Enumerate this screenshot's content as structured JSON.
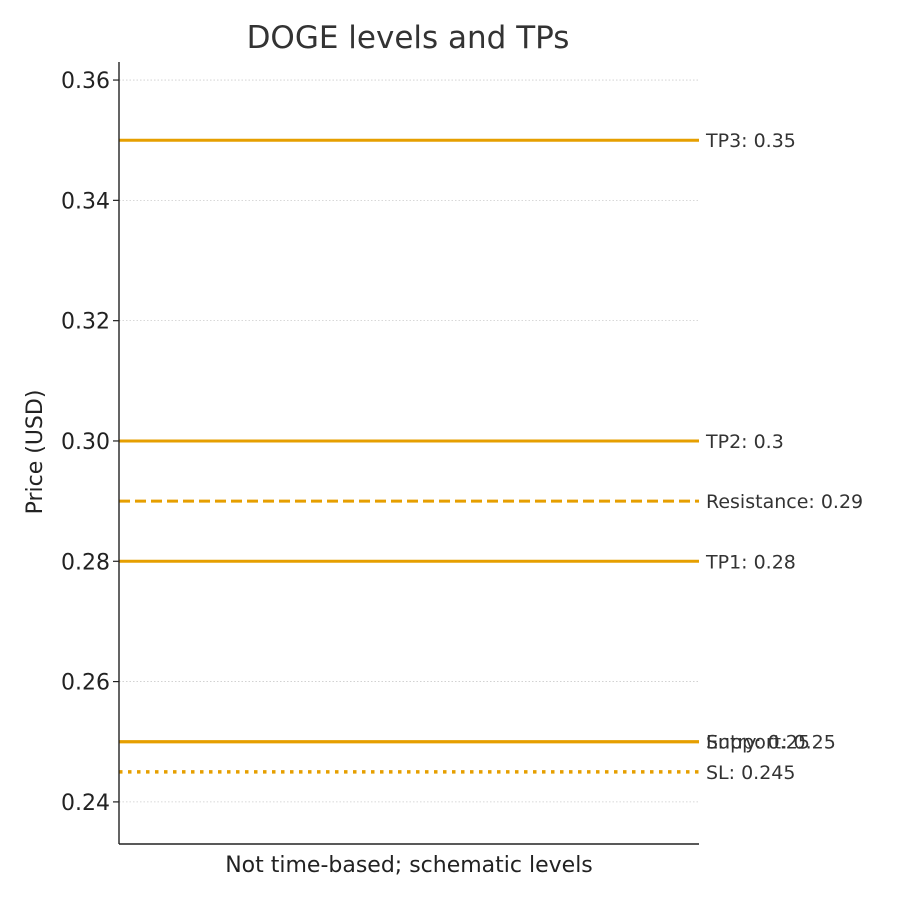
{
  "chart_data": {
    "type": "line",
    "title": "DOGE levels and TPs",
    "xlabel": "Not time-based; schematic levels",
    "ylabel": "Price (USD)",
    "ylim": [
      0.233,
      0.363
    ],
    "yticks": [
      0.24,
      0.26,
      0.28,
      0.3,
      0.32,
      0.34,
      0.36
    ],
    "ytick_labels": [
      "0.24",
      "0.26",
      "0.28",
      "0.30",
      "0.32",
      "0.34",
      "0.36"
    ],
    "grid": "horizontal dotted",
    "levels": [
      {
        "label": "TP3: 0.35",
        "value": 0.35,
        "style": "solid"
      },
      {
        "label": "TP2: 0.3",
        "value": 0.3,
        "style": "solid"
      },
      {
        "label": "Resistance: 0.29",
        "value": 0.29,
        "style": "dashed"
      },
      {
        "label": "TP1: 0.28",
        "value": 0.28,
        "style": "solid"
      },
      {
        "label": "Support: 0.25",
        "value": 0.25,
        "style": "solid"
      },
      {
        "label": "Entry: 0.25",
        "value": 0.25,
        "style": "solid"
      },
      {
        "label": "SL: 0.245",
        "value": 0.245,
        "style": "dotted"
      }
    ],
    "colors": {
      "level_line": "#e69f00",
      "axis": "#222222",
      "grid": "#cccccc",
      "text": "#333333"
    }
  }
}
